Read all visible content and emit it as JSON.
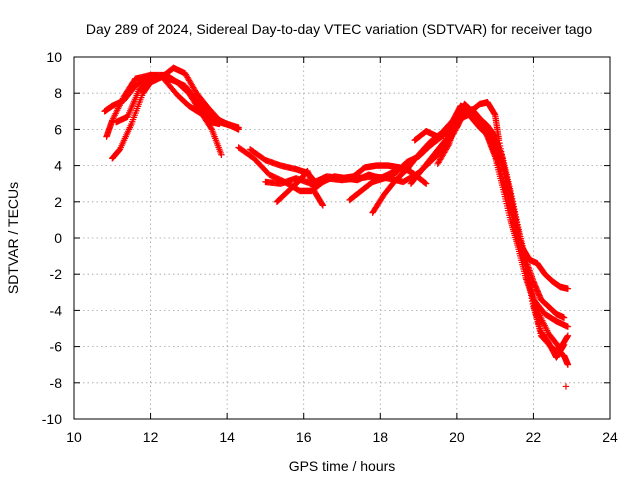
{
  "chart_data": {
    "type": "scatter",
    "title": "Day 289 of 2024, Sidereal Day-to-day VTEC variation (SDTVAR) for receiver tago",
    "xlabel": "GPS time / hours",
    "ylabel": "SDTVAR / TECUs",
    "xlim": [
      10,
      24
    ],
    "ylim": [
      -10,
      10
    ],
    "xticks": [
      10,
      12,
      14,
      16,
      18,
      20,
      22,
      24
    ],
    "yticks": [
      -10,
      -8,
      -6,
      -4,
      -2,
      0,
      2,
      4,
      6,
      8,
      10
    ],
    "xtick_labels": [
      "10",
      "12",
      "14",
      "16",
      "18",
      "20",
      "22",
      "24"
    ],
    "ytick_labels": [
      "-10",
      "-8",
      "-6",
      "-4",
      "-2",
      "0",
      "2",
      "4",
      "6",
      "8",
      "10"
    ],
    "grid": true,
    "marker": "plus",
    "color": "#ff0000",
    "series": [
      {
        "name": "track-1",
        "x": [
          10.8,
          11.0,
          11.3,
          11.6,
          12.0,
          12.3,
          12.6,
          12.9,
          13.2,
          13.5,
          13.8,
          14.0,
          14.3
        ],
        "y": [
          7.0,
          7.3,
          7.6,
          8.4,
          9.0,
          8.9,
          9.4,
          9.1,
          8.0,
          7.2,
          6.5,
          6.3,
          6.1
        ]
      },
      {
        "name": "track-2",
        "x": [
          10.85,
          11.0,
          11.3,
          11.6,
          12.0,
          12.4,
          12.7,
          13.0,
          13.3,
          13.6,
          13.85
        ],
        "y": [
          5.6,
          6.5,
          7.8,
          8.8,
          9.0,
          9.0,
          8.6,
          8.0,
          7.0,
          6.0,
          4.6
        ]
      },
      {
        "name": "track-3",
        "x": [
          11.0,
          11.2,
          11.5,
          11.8,
          12.0,
          12.3,
          12.6,
          12.9,
          13.2,
          13.5,
          13.8,
          14.1,
          14.3
        ],
        "y": [
          4.4,
          4.9,
          6.3,
          8.0,
          8.6,
          8.9,
          8.7,
          8.4,
          7.6,
          6.8,
          6.4,
          6.2,
          6.0
        ]
      },
      {
        "name": "track-4",
        "x": [
          11.1,
          11.4,
          11.7,
          12.0,
          12.3,
          12.7,
          13.0,
          13.3,
          13.6,
          13.8
        ],
        "y": [
          6.4,
          6.7,
          8.2,
          8.7,
          8.9,
          7.9,
          7.3,
          6.9,
          6.4,
          6.3
        ]
      },
      {
        "name": "track-5",
        "x": [
          14.3,
          14.7,
          15.1,
          15.5,
          15.9,
          16.2,
          16.5,
          16.8,
          17.1,
          17.4,
          17.7,
          18.0,
          18.3,
          18.6,
          18.9,
          19.2
        ],
        "y": [
          5.0,
          4.4,
          3.5,
          3.1,
          2.6,
          2.6,
          3.1,
          3.4,
          3.3,
          3.2,
          3.5,
          3.3,
          3.6,
          3.9,
          3.5,
          3.0
        ]
      },
      {
        "name": "track-6",
        "x": [
          14.6,
          15.0,
          15.4,
          15.8,
          16.1,
          16.3,
          16.6,
          17.0,
          17.3,
          17.6,
          17.9,
          18.2,
          18.5,
          18.8
        ],
        "y": [
          4.9,
          4.3,
          4.0,
          3.8,
          3.6,
          3.1,
          3.4,
          3.3,
          3.4,
          3.9,
          4.0,
          4.0,
          3.9,
          3.7
        ]
      },
      {
        "name": "track-7",
        "x": [
          15.3,
          15.6,
          15.9,
          16.1,
          16.3,
          16.5
        ],
        "y": [
          2.0,
          2.6,
          3.2,
          3.7,
          2.5,
          1.8
        ]
      },
      {
        "name": "track-8",
        "x": [
          15.0,
          15.4,
          15.8,
          16.2,
          16.6,
          17.0,
          17.4,
          17.8,
          18.2,
          18.6,
          19.0,
          19.4,
          19.7
        ],
        "y": [
          3.1,
          3.0,
          3.3,
          3.0,
          3.3,
          3.2,
          3.3,
          3.4,
          3.3,
          3.1,
          3.6,
          4.4,
          5.0
        ]
      },
      {
        "name": "track-9",
        "x": [
          17.2,
          17.5,
          17.8,
          18.1,
          18.4,
          18.7,
          19.0,
          19.3,
          19.6,
          19.9,
          20.1,
          20.4,
          20.6,
          20.8,
          21.0,
          21.2,
          21.4,
          21.6,
          21.8,
          22.0,
          22.3,
          22.6,
          22.9
        ],
        "y": [
          2.1,
          2.6,
          3.1,
          3.3,
          3.6,
          4.2,
          4.5,
          5.1,
          5.6,
          6.2,
          6.6,
          6.9,
          6.5,
          5.6,
          4.5,
          2.8,
          1.0,
          -0.5,
          -2.2,
          -3.4,
          -4.2,
          -4.6,
          -4.9
        ]
      },
      {
        "name": "track-10",
        "x": [
          17.8,
          18.1,
          18.4,
          18.7,
          19.0,
          19.3,
          19.6,
          19.9,
          20.1,
          20.3,
          20.5,
          20.7,
          20.9,
          21.1,
          21.3,
          21.5,
          21.7,
          21.9,
          22.1,
          22.4,
          22.7,
          22.9
        ],
        "y": [
          1.4,
          2.4,
          3.2,
          3.8,
          4.6,
          5.3,
          5.8,
          6.5,
          7.3,
          7.1,
          6.8,
          6.2,
          5.2,
          4.0,
          2.4,
          0.8,
          -0.8,
          -2.4,
          -4.0,
          -5.3,
          -6.1,
          -5.4
        ]
      },
      {
        "name": "track-11",
        "x": [
          18.8,
          19.1,
          19.4,
          19.7,
          20.0,
          20.2,
          20.4,
          20.6,
          20.8,
          21.0,
          21.2,
          21.4,
          21.6,
          21.8,
          22.0,
          22.2,
          22.5,
          22.8,
          22.9
        ],
        "y": [
          3.0,
          3.8,
          4.6,
          5.4,
          6.7,
          7.2,
          6.6,
          6.1,
          5.7,
          5.1,
          4.0,
          2.0,
          0.0,
          -1.6,
          -3.6,
          -5.4,
          -6.1,
          -6.5,
          -7.0
        ]
      },
      {
        "name": "track-12",
        "x": [
          18.9,
          19.2,
          19.5,
          19.8,
          20.0,
          20.3,
          20.6,
          20.8,
          21.0,
          21.1,
          21.3,
          21.5,
          21.7,
          21.9,
          22.1,
          22.3,
          22.5,
          22.7,
          22.9
        ],
        "y": [
          5.4,
          5.9,
          5.6,
          6.0,
          6.4,
          6.9,
          7.4,
          7.5,
          6.8,
          5.4,
          3.2,
          1.2,
          -0.5,
          -1.2,
          -1.4,
          -2.0,
          -2.4,
          -2.7,
          -2.8
        ]
      },
      {
        "name": "track-13",
        "x": [
          19.5,
          19.8,
          20.0,
          20.2,
          20.4,
          20.6,
          20.8,
          21.0,
          21.2,
          21.4,
          21.6,
          21.8,
          22.0,
          22.2,
          22.4,
          22.6,
          22.8
        ],
        "y": [
          4.1,
          5.2,
          6.6,
          7.4,
          7.0,
          6.4,
          6.0,
          5.3,
          4.2,
          2.4,
          0.4,
          -1.6,
          -3.8,
          -5.2,
          -5.8,
          -6.6,
          -5.9
        ]
      },
      {
        "name": "track-14",
        "x": [
          19.7,
          20.0,
          20.2,
          20.4,
          20.6,
          20.8,
          21.0,
          21.2,
          21.4,
          21.6,
          21.8,
          22.0,
          22.2,
          22.4,
          22.6,
          22.8
        ],
        "y": [
          5.0,
          6.1,
          7.0,
          7.1,
          6.6,
          6.2,
          5.6,
          4.4,
          2.6,
          0.6,
          -1.2,
          -2.4,
          -3.4,
          -3.8,
          -4.2,
          -4.4
        ]
      },
      {
        "name": "outlier",
        "x": [
          22.85
        ],
        "y": [
          -8.2
        ]
      }
    ]
  }
}
